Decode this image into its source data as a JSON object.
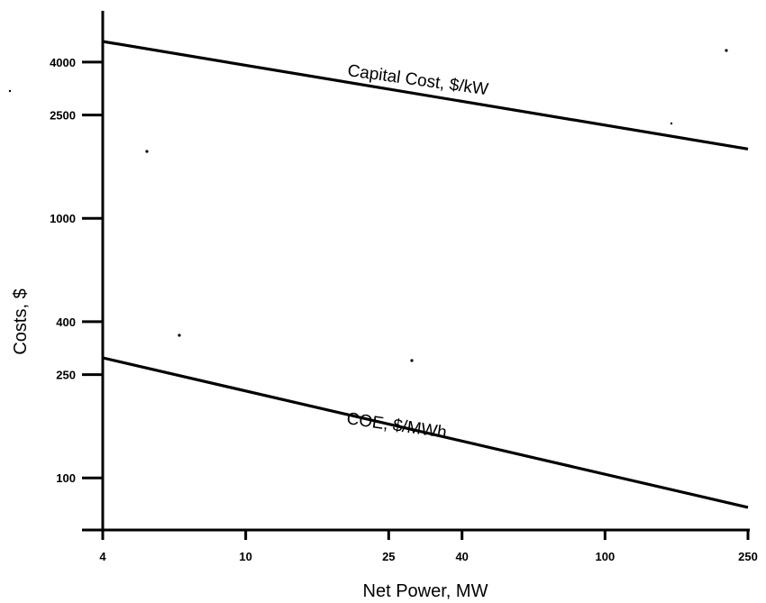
{
  "chart_data": {
    "type": "line",
    "title": "",
    "xlabel": "Net Power, MW",
    "ylabel": "Costs, $",
    "x_scale": "log",
    "y_scale": "log",
    "xlim": [
      4,
      250
    ],
    "ylim": [
      63,
      6300
    ],
    "x_ticks": [
      4,
      10,
      25,
      40,
      100,
      250
    ],
    "y_ticks": [
      100,
      250,
      400,
      1000,
      2500,
      4000
    ],
    "grid": false,
    "legend": "none",
    "series": [
      {
        "name": "Capital Cost, $/kW",
        "x": [
          4,
          250
        ],
        "y": [
          4800,
          1850
        ]
      },
      {
        "name": "COE, $/MWh",
        "x": [
          4,
          250
        ],
        "y": [
          290,
          77
        ]
      }
    ]
  }
}
